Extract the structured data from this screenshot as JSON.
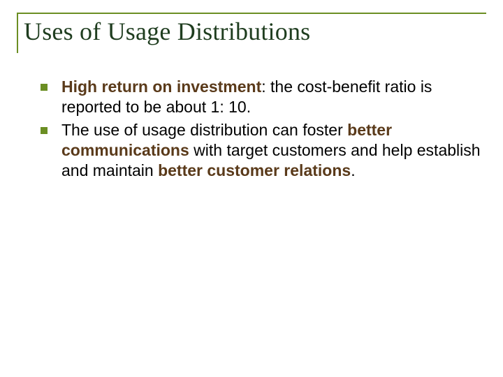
{
  "slide": {
    "title": "Uses of Usage Distributions",
    "title_color": "#1f3d1f",
    "border_color": "#6b8e23",
    "bullet_color": "#6b8e23",
    "text_color": "#000000",
    "bold_color": "#5a3a1a",
    "background_color": "#ffffff",
    "title_fontsize": 36,
    "body_fontsize": 23,
    "bullets": [
      {
        "segments": [
          {
            "text": "High return on investment",
            "bold": true
          },
          {
            "text": ": the cost-benefit ratio is reported to be about 1: 10.",
            "bold": false
          }
        ]
      },
      {
        "segments": [
          {
            "text": "The use of usage distribution can foster ",
            "bold": false
          },
          {
            "text": "better communications",
            "bold": true
          },
          {
            "text": " with target customers and help establish and maintain ",
            "bold": false
          },
          {
            "text": "better customer relations",
            "bold": true
          },
          {
            "text": ".",
            "bold": false
          }
        ]
      }
    ]
  }
}
